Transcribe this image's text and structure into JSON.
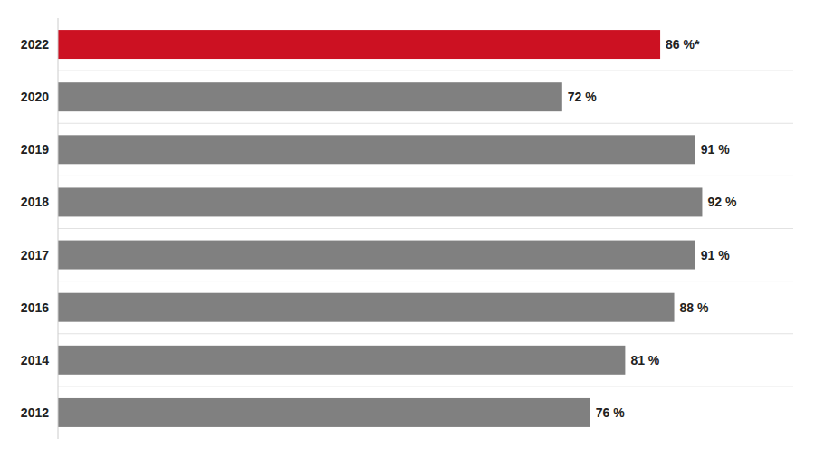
{
  "chart_data": {
    "type": "bar",
    "orientation": "horizontal",
    "categories": [
      "2022",
      "2020",
      "2019",
      "2018",
      "2017",
      "2016",
      "2014",
      "2012"
    ],
    "values": [
      86,
      72,
      91,
      92,
      91,
      88,
      81,
      76
    ],
    "value_labels": [
      "86 %*",
      "72 %",
      "91 %",
      "92 %",
      "91 %",
      "88 %",
      "81 %",
      "76 %"
    ],
    "colors": [
      "#cc1122",
      "#808080",
      "#808080",
      "#808080",
      "#808080",
      "#808080",
      "#808080",
      "#808080"
    ],
    "xlim": [
      0,
      105
    ],
    "tick_labels": "y",
    "data_labels": true
  }
}
